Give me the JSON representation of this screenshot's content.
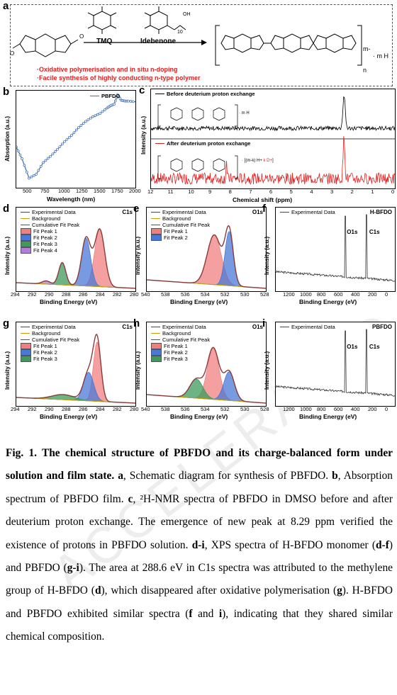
{
  "panel_labels": {
    "a": "a",
    "b": "b",
    "c": "c",
    "d": "d",
    "e": "e",
    "f": "f",
    "g": "g",
    "h": "h",
    "i": "i"
  },
  "panel_a": {
    "reagent_1": "TMQ",
    "reagent_2": "Idebenone",
    "sub_10": "10",
    "oh": "OH",
    "bullet_1": "·Oxidative polymerisation and in situ n-doping",
    "bullet_2": "·Facile synthesis of highly conducting n-type polymer",
    "polymer_charge": "m-",
    "polymer_proton": "· m H",
    "polymer_n": "n"
  },
  "panel_b": {
    "legend": "PBFDO",
    "xlabel": "Wavelength (nm)",
    "ylabel": "Absorption (a.u.)",
    "xticks": [
      "500",
      "750",
      "1000",
      "1250",
      "1500",
      "1750",
      "2000"
    ]
  },
  "panel_c": {
    "legend_top": "Before deuterium proton exchange",
    "legend_bottom": "After deuterium proton exchange",
    "xlabel": "Chemical shift (ppm)",
    "ylabel": "Intensity (a.u.)",
    "xticks": [
      "12",
      "11",
      "10",
      "9",
      "8",
      "7",
      "6",
      "5",
      "4",
      "3",
      "2",
      "1",
      "0"
    ],
    "top_struct": "· m H",
    "bottom_struct_black": "· [(m-k) H",
    "bottom_struct_red": "k D",
    "bracket_close": "]"
  },
  "xps": {
    "legend_experimental": "Experimental Data",
    "legend_background": "Background",
    "legend_cumulative": "Cumulative Fit Peak",
    "legend_fit1": "Fit Peak 1",
    "legend_fit2": "Fit Peak 2",
    "legend_fit3": "Fit Peak 3",
    "legend_fit4": "Fit Peak 4",
    "xlabel": "Binding Energy (eV)",
    "ylabel": "Intensity (a.u.)",
    "c1s": "C1s",
    "o1s": "O1s",
    "hbfdo": "H-BFDO",
    "pbfdo": "PBFDO",
    "ticks_c": [
      "294",
      "292",
      "290",
      "288",
      "286",
      "284",
      "282",
      "280"
    ],
    "ticks_o": [
      "540",
      "538",
      "536",
      "534",
      "532",
      "530",
      "528"
    ],
    "ticks_survey": [
      "1200",
      "1000",
      "800",
      "600",
      "400",
      "200",
      "0"
    ]
  },
  "colors": {
    "fit1": "#f08080",
    "fit2": "#4a78d6",
    "fit3": "#3c9a5a",
    "fit4": "#b07fd8",
    "bg": "#c8a000",
    "cum": "#8b3a3a",
    "red": "#e02020",
    "blue": "#2a6ebb"
  },
  "chart_data": [
    {
      "type": "line",
      "name": "PBFDO absorption",
      "x": [
        320,
        400,
        500,
        600,
        700,
        800,
        900,
        1000,
        1100,
        1200,
        1300,
        1400,
        1500,
        1600,
        1650,
        1700,
        1750,
        1800,
        1850,
        1900,
        2000
      ],
      "y": [
        0.45,
        0.3,
        0.05,
        0.1,
        0.25,
        0.33,
        0.42,
        0.52,
        0.6,
        0.7,
        0.78,
        0.84,
        0.88,
        0.95,
        0.98,
        1.0,
        1.12,
        1.05,
        1.04,
        1.04,
        1.03
      ],
      "xlabel": "Wavelength (nm)",
      "ylabel": "Absorption (a.u.)"
    },
    {
      "type": "line",
      "name": "2H-NMR",
      "x": [
        12,
        2.5,
        0
      ],
      "xlabel": "Chemical shift (ppm)",
      "peaks_ppm": [
        2.5,
        8.29
      ]
    },
    {
      "type": "area",
      "name": "XPS H-BFDO C1s",
      "peaks_eV": [
        284.2,
        285.8,
        288.6,
        290.5
      ]
    },
    {
      "type": "area",
      "name": "XPS H-BFDO O1s",
      "peaks_eV": [
        533.2,
        531.7
      ]
    },
    {
      "type": "line",
      "name": "XPS H-BFDO survey",
      "peaks_eV": [
        531,
        284
      ]
    },
    {
      "type": "area",
      "name": "XPS PBFDO C1s",
      "peaks_eV": [
        284.5,
        285.5,
        288.5
      ]
    },
    {
      "type": "area",
      "name": "XPS PBFDO O1s",
      "peaks_eV": [
        533.3,
        531.7,
        535
      ]
    },
    {
      "type": "line",
      "name": "XPS PBFDO survey",
      "peaks_eV": [
        531,
        284
      ]
    }
  ],
  "caption": {
    "fig_bold": "Fig. 1. The chemical structure of PBFDO and its charge-balanced form under solution and film state.",
    "a_bold": "a",
    "a_text": ", Schematic diagram for synthesis of PBFDO.",
    "b_bold": "b",
    "b_text": ", Absorption spectrum of PBFDO film.",
    "c_bold": "c",
    "c_text": ", ²H-NMR spectra of PBFDO in DMSO before and after deuterium proton exchange. The emergence of new peak at 8.29 ppm verified the existence of protons in PBFDO solution.",
    "di_bold": "d-i",
    "di_text": ", XPS spectra of H-BFDO monomer (",
    "df_bold": "d-f",
    "df_text": ") and PBFDO (",
    "gi_bold": "g-i",
    "gi_text": "). The area at 288.6 eV in C1s spectra was attributed to the methylene group of H-BFDO (",
    "d_bold": "d",
    "d_text": "), which disappeared after oxidative polymerisation (",
    "g_bold": "g",
    "g_text": "). H-BFDO and PBFDO exhibited similar spectra (",
    "f_bold": "f",
    "and_text": " and ",
    "i_bold": "i",
    "end_text": "), indicating that they shared similar chemical composition."
  },
  "watermark": "ACCELERATED ARTICLE PREVIEW"
}
